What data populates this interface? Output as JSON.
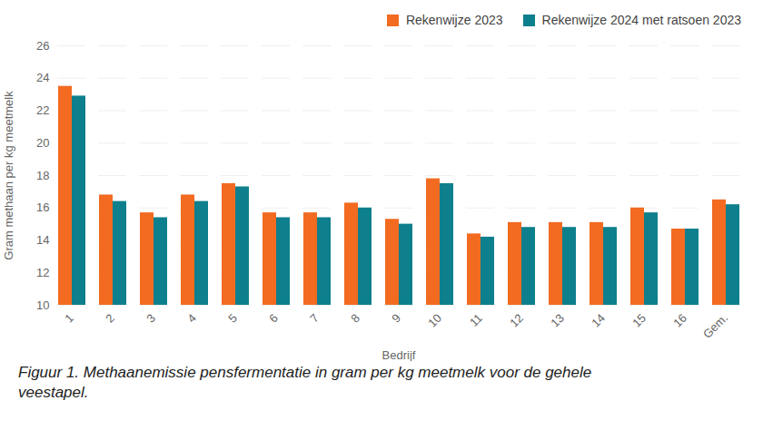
{
  "chart_data": {
    "type": "bar",
    "caption": "Figuur 1. Methaanemissie pensfermentatie in gram per kg meetmelk voor de gehele veestapel.",
    "x_label": "Bedrijf",
    "y_label": "Gram methaan per kg meetmelk",
    "categories": [
      "1",
      "2",
      "3",
      "4",
      "5",
      "6",
      "7",
      "8",
      "9",
      "10",
      "11",
      "12",
      "13",
      "14",
      "15",
      "16",
      "Gem."
    ],
    "series": [
      {
        "name": "Rekenwijze 2023",
        "color": "#f26b21",
        "values": [
          23.5,
          16.8,
          15.7,
          16.8,
          17.5,
          15.7,
          15.7,
          16.3,
          15.3,
          17.8,
          14.4,
          15.1,
          15.1,
          15.1,
          16.0,
          14.7,
          16.5
        ]
      },
      {
        "name": "Rekenwijze 2024 met ratsoen 2023",
        "color": "#0e7f8c",
        "values": [
          22.9,
          16.4,
          15.4,
          16.4,
          17.3,
          15.4,
          15.4,
          16.0,
          15.0,
          17.5,
          14.2,
          14.8,
          14.8,
          14.8,
          15.7,
          14.7,
          16.2
        ]
      }
    ],
    "ylim": [
      10,
      26
    ],
    "yticks": [
      10,
      12,
      14,
      16,
      18,
      20,
      22,
      24,
      26
    ],
    "grid": true,
    "legend": "top-right"
  }
}
